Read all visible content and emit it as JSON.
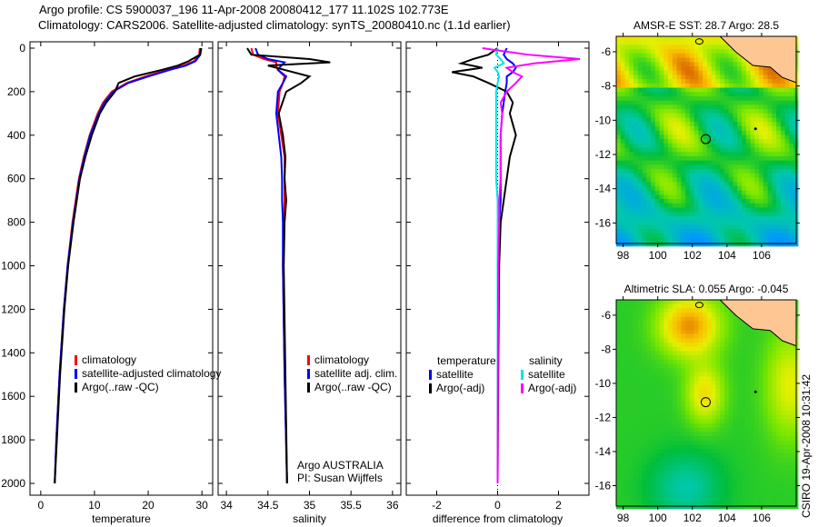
{
  "title_line1": "Argo profile: CS 5900037_196 11-Apr-2008 20080412_177 11.102S 102.773E",
  "title_line2": "Climatology: CARS2006. Satellite-adjusted climatology: synTS_20080410.nc (1.1d earlier)",
  "footer_credit": "CSIRO 19-Apr-2008 10:31:42",
  "colors": {
    "climatology": "#ff0000",
    "satellite": "#0000ff",
    "argo": "#000000",
    "sal_satellite": "#00e5e5",
    "sal_argo": "#ff00ff"
  },
  "chart_data": [
    {
      "type": "line",
      "id": "temperature",
      "xlabel": "temperature",
      "xlim": [
        -2,
        32
      ],
      "ylim": [
        2050,
        0
      ],
      "xticks": [
        0,
        10,
        20,
        30
      ],
      "yticks": [
        0,
        200,
        400,
        600,
        800,
        1000,
        1200,
        1400,
        1600,
        1800,
        2000
      ],
      "legend": [
        "climatology",
        "satellite-adjusted climatology",
        "Argo(..raw -QC)"
      ],
      "depth": [
        0,
        30,
        60,
        80,
        100,
        130,
        160,
        200,
        250,
        300,
        400,
        500,
        600,
        800,
        1000,
        1200,
        1500,
        1800,
        2000
      ],
      "series": [
        {
          "name": "climatology",
          "color": "#ff0000",
          "values": [
            29.6,
            29.5,
            28.5,
            26.5,
            23.5,
            19.5,
            16,
            13.2,
            11.6,
            10.6,
            9.1,
            8.0,
            7.1,
            5.9,
            5.0,
            4.3,
            3.5,
            2.9,
            2.6
          ]
        },
        {
          "name": "satellite-adjusted climatology",
          "color": "#0000ff",
          "values": [
            29.9,
            29.7,
            28.8,
            27,
            24,
            20,
            16.3,
            13.5,
            11.8,
            10.8,
            9.2,
            8.1,
            7.2,
            6.0,
            5.0,
            4.3,
            3.5,
            2.9,
            2.6
          ]
        },
        {
          "name": "Argo(..raw -QC)",
          "color": "#000000",
          "values": [
            29.8,
            29.6,
            27.5,
            25.5,
            22.5,
            17.5,
            14.5,
            13.8,
            12.2,
            11.0,
            9.5,
            8.3,
            7.3,
            6.1,
            5.1,
            4.4,
            3.6,
            3.0,
            2.6
          ]
        }
      ]
    },
    {
      "type": "line",
      "id": "salinity",
      "xlabel": "salinity",
      "xlim": [
        33.9,
        36.1
      ],
      "ylim": [
        2050,
        0
      ],
      "xticks": [
        34,
        34.5,
        35,
        35.5,
        36
      ],
      "yticks": [
        0,
        200,
        400,
        600,
        800,
        1000,
        1200,
        1400,
        1600,
        1800,
        2000
      ],
      "legend": [
        "climatology",
        "satellite adj. clim.",
        "Argo(..raw -QC)"
      ],
      "annotation": [
        "Argo AUSTRALIA",
        "PI: Susan Wijffels"
      ],
      "depth": [
        0,
        30,
        50,
        65,
        80,
        100,
        130,
        160,
        200,
        300,
        400,
        500,
        600,
        700,
        800,
        1000,
        1500,
        2000
      ],
      "series": [
        {
          "name": "climatology",
          "color": "#ff0000",
          "values": [
            34.3,
            34.32,
            34.45,
            34.6,
            34.6,
            34.62,
            34.7,
            34.68,
            34.64,
            34.62,
            34.66,
            34.7,
            34.7,
            34.7,
            34.69,
            34.68,
            34.7,
            34.73
          ]
        },
        {
          "name": "satellite adj. clim.",
          "color": "#0000ff",
          "values": [
            34.35,
            34.38,
            34.5,
            34.7,
            34.66,
            34.62,
            34.72,
            34.68,
            34.62,
            34.6,
            34.63,
            34.66,
            34.67,
            34.67,
            34.68,
            34.68,
            34.7,
            34.73
          ]
        },
        {
          "name": "Argo(..raw -QC)",
          "color": "#000000",
          "values": [
            34.25,
            34.3,
            35.0,
            35.25,
            34.5,
            34.7,
            35.0,
            34.9,
            34.72,
            34.63,
            34.68,
            34.71,
            34.7,
            34.72,
            34.7,
            34.69,
            34.71,
            34.73
          ]
        }
      ]
    },
    {
      "type": "line",
      "id": "difference",
      "xlabel": "difference from climatology",
      "xlim": [
        -3,
        3
      ],
      "ylim": [
        2050,
        0
      ],
      "xticks": [
        -2,
        0,
        2
      ],
      "yticks": [
        0,
        200,
        400,
        600,
        800,
        1000,
        1200,
        1400,
        1600,
        1800,
        2000
      ],
      "legend_headers": [
        "temperature",
        "salinity"
      ],
      "legend": [
        "satellite",
        "Argo(-adj)",
        "satellite",
        "Argo(-adj)"
      ],
      "depth": [
        0,
        30,
        50,
        70,
        90,
        110,
        130,
        160,
        200,
        250,
        300,
        400,
        500,
        600,
        700,
        800,
        1000,
        1500,
        2000
      ],
      "series": [
        {
          "name": "temperature satellite",
          "color": "#0000ff",
          "values": [
            0.3,
            0.2,
            0.3,
            0.5,
            0.6,
            0.5,
            0.3,
            0.3,
            0.25,
            0.2,
            0.15,
            0.1,
            0.1,
            0.1,
            0.1,
            0.05,
            0,
            0,
            0
          ]
        },
        {
          "name": "temperature Argo(-adj)",
          "color": "#000000",
          "values": [
            0,
            -0.3,
            -0.8,
            -1.2,
            -0.5,
            -1.5,
            -0.8,
            -0.3,
            0.3,
            0.5,
            0.4,
            0.6,
            0.4,
            0.3,
            0.2,
            0.1,
            0.05,
            0.02,
            0
          ]
        },
        {
          "name": "salinity satellite",
          "color": "#00e5e5",
          "values": [
            0,
            -0.05,
            0.1,
            0.2,
            -0.1,
            0,
            0.05,
            0,
            -0.05,
            -0.05,
            -0.05,
            -0.05,
            -0.05,
            -0.05,
            0,
            0,
            0,
            0,
            0
          ]
        },
        {
          "name": "salinity Argo(-adj)",
          "color": "#ff00ff",
          "values": [
            -0.5,
            1.0,
            2.7,
            1.2,
            0.3,
            0.5,
            0.8,
            0.6,
            0.3,
            0.1,
            0.15,
            0.1,
            0.1,
            0.1,
            0.05,
            0.05,
            0.02,
            0.01,
            0
          ]
        }
      ]
    },
    {
      "type": "heatmap",
      "id": "sst",
      "title": "AMSR-E SST: 28.7  Argo: 28.5",
      "xlim": [
        97.6,
        108
      ],
      "ylim": [
        -17.2,
        -5.1
      ],
      "xticks": [
        98,
        100,
        102,
        104,
        106
      ],
      "yticks": [
        -6,
        -8,
        -10,
        -12,
        -14,
        -16
      ],
      "marker": {
        "lon": 102.773,
        "lat": -11.102
      }
    },
    {
      "type": "heatmap",
      "id": "sla",
      "title": "Altimetric SLA: 0.055  Argo: -0.045",
      "xlim": [
        97.6,
        108
      ],
      "ylim": [
        -17.2,
        -5.1
      ],
      "xticks": [
        98,
        100,
        102,
        104,
        106
      ],
      "yticks": [
        -6,
        -8,
        -10,
        -12,
        -14,
        -16
      ],
      "marker": {
        "lon": 102.773,
        "lat": -11.102
      }
    }
  ]
}
